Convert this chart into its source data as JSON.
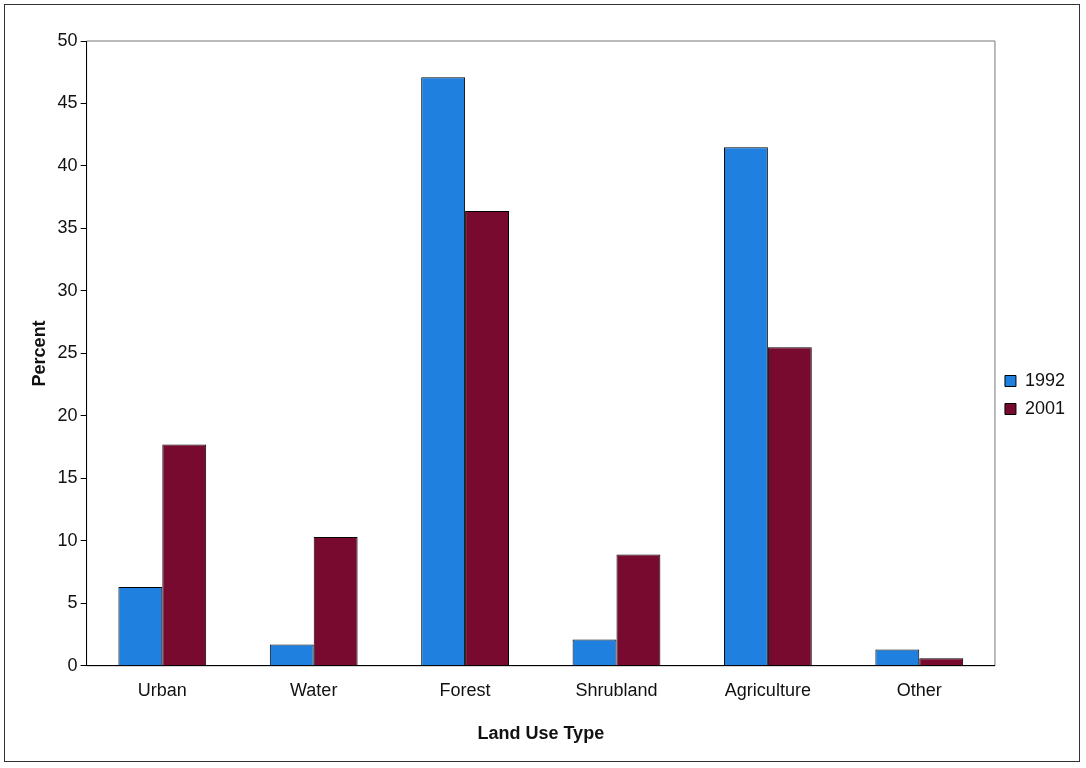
{
  "chart_data": {
    "type": "bar",
    "xlabel": "Land Use Type",
    "ylabel": "Percent",
    "categories": [
      "Urban",
      "Water",
      "Forest",
      "Shrubland",
      "Agriculture",
      "Other"
    ],
    "series": [
      {
        "name": "1992",
        "color": "#1f80e0",
        "values": [
          6.3,
          1.7,
          47.1,
          2.1,
          41.5,
          1.3
        ]
      },
      {
        "name": "2001",
        "color": "#780a30",
        "values": [
          17.7,
          10.3,
          36.4,
          8.9,
          25.5,
          0.6
        ]
      }
    ],
    "ylim": [
      0,
      50
    ],
    "yticks": [
      0,
      5,
      10,
      15,
      20,
      25,
      30,
      35,
      40,
      45,
      50
    ],
    "grid": false,
    "legend": "right"
  }
}
